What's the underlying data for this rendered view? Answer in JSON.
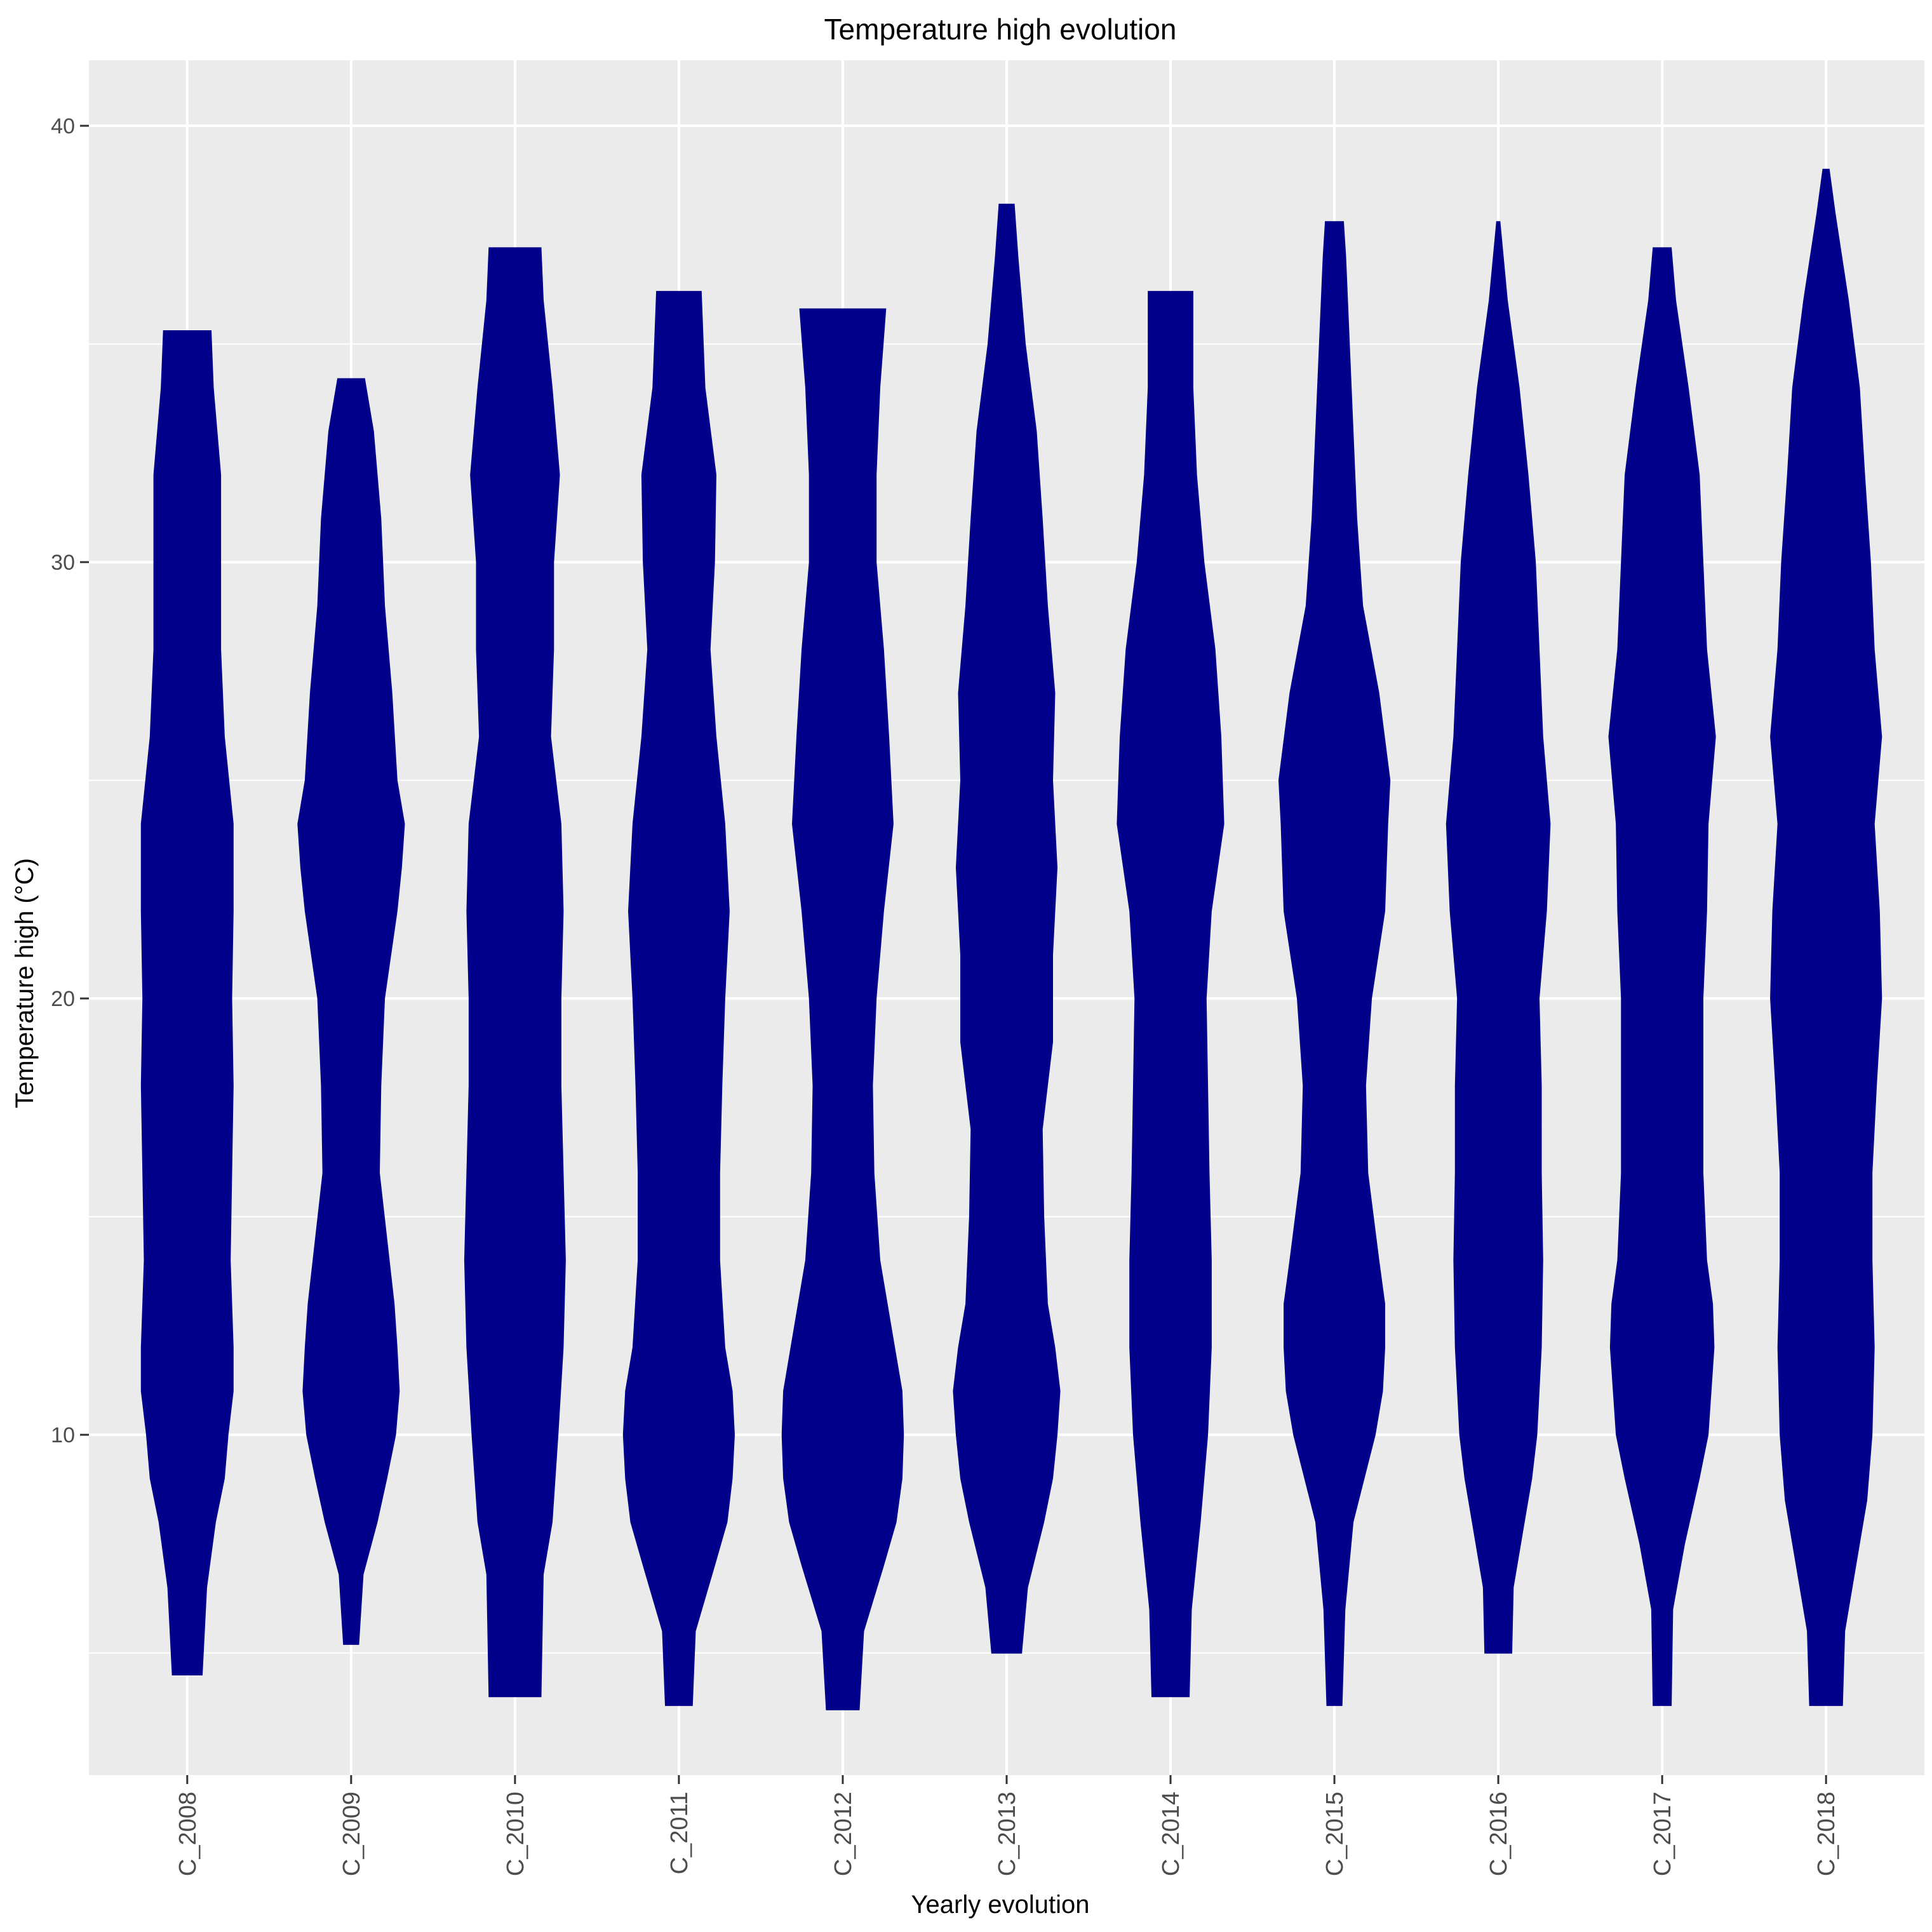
{
  "chart_data": {
    "type": "violin",
    "title": "Temperature high evolution",
    "xlabel": "Yearly evolution",
    "ylabel": "Temperature high (°C)",
    "ylim": [
      2.2,
      41.5
    ],
    "y_ticks": [
      10,
      20,
      30,
      40
    ],
    "grid": true,
    "fill_color": "#00008B",
    "panel_color": "#EBEBEB",
    "grid_color": "#FFFFFF",
    "categories": [
      "C_2008",
      "C_2009",
      "C_2010",
      "C_2011",
      "C_2012",
      "C_2013",
      "C_2014",
      "C_2015",
      "C_2016",
      "C_2017",
      "C_2018"
    ],
    "series": [
      {
        "category": "C_2008",
        "min": 4.5,
        "max": 35.3,
        "density": [
          [
            4.5,
            0.2
          ],
          [
            6.5,
            0.26
          ],
          [
            8,
            0.38
          ],
          [
            9,
            0.5
          ],
          [
            10,
            0.55
          ],
          [
            11,
            0.62
          ],
          [
            12,
            0.62
          ],
          [
            14,
            0.58
          ],
          [
            16,
            0.6
          ],
          [
            18,
            0.62
          ],
          [
            20,
            0.6
          ],
          [
            22,
            0.62
          ],
          [
            24,
            0.62
          ],
          [
            26,
            0.5
          ],
          [
            28,
            0.45
          ],
          [
            30,
            0.45
          ],
          [
            32,
            0.45
          ],
          [
            34,
            0.35
          ],
          [
            35.3,
            0.32
          ]
        ]
      },
      {
        "category": "C_2009",
        "min": 5.2,
        "max": 34.2,
        "density": [
          [
            5.2,
            0.1
          ],
          [
            6.8,
            0.16
          ],
          [
            8,
            0.35
          ],
          [
            9,
            0.48
          ],
          [
            10,
            0.6
          ],
          [
            11,
            0.65
          ],
          [
            12,
            0.62
          ],
          [
            13,
            0.58
          ],
          [
            14.5,
            0.48
          ],
          [
            16,
            0.38
          ],
          [
            18,
            0.4
          ],
          [
            20,
            0.45
          ],
          [
            22,
            0.62
          ],
          [
            23,
            0.68
          ],
          [
            24,
            0.72
          ],
          [
            25,
            0.62
          ],
          [
            27,
            0.55
          ],
          [
            29,
            0.45
          ],
          [
            31,
            0.4
          ],
          [
            33,
            0.3
          ],
          [
            34.2,
            0.18
          ]
        ]
      },
      {
        "category": "C_2010",
        "min": 4.0,
        "max": 37.2,
        "density": [
          [
            4.0,
            0.35
          ],
          [
            6.8,
            0.38
          ],
          [
            8,
            0.5
          ],
          [
            10,
            0.58
          ],
          [
            12,
            0.65
          ],
          [
            14,
            0.68
          ],
          [
            16,
            0.65
          ],
          [
            18,
            0.62
          ],
          [
            20,
            0.62
          ],
          [
            22,
            0.65
          ],
          [
            24,
            0.62
          ],
          [
            26,
            0.48
          ],
          [
            28,
            0.52
          ],
          [
            30,
            0.52
          ],
          [
            32,
            0.6
          ],
          [
            34,
            0.5
          ],
          [
            36,
            0.38
          ],
          [
            37.2,
            0.35
          ]
        ]
      },
      {
        "category": "C_2011",
        "min": 3.8,
        "max": 36.2,
        "density": [
          [
            3.8,
            0.18
          ],
          [
            5.5,
            0.22
          ],
          [
            7,
            0.48
          ],
          [
            8,
            0.65
          ],
          [
            9,
            0.72
          ],
          [
            10,
            0.75
          ],
          [
            11,
            0.72
          ],
          [
            12,
            0.62
          ],
          [
            14,
            0.55
          ],
          [
            16,
            0.55
          ],
          [
            18,
            0.58
          ],
          [
            20,
            0.62
          ],
          [
            22,
            0.68
          ],
          [
            24,
            0.62
          ],
          [
            26,
            0.5
          ],
          [
            28,
            0.42
          ],
          [
            30,
            0.48
          ],
          [
            32,
            0.5
          ],
          [
            34,
            0.35
          ],
          [
            36.2,
            0.3
          ]
        ]
      },
      {
        "category": "C_2012",
        "min": 3.7,
        "max": 35.8,
        "density": [
          [
            3.7,
            0.22
          ],
          [
            5.5,
            0.28
          ],
          [
            7,
            0.55
          ],
          [
            8,
            0.72
          ],
          [
            9,
            0.8
          ],
          [
            10,
            0.82
          ],
          [
            11,
            0.8
          ],
          [
            12,
            0.7
          ],
          [
            14,
            0.5
          ],
          [
            16,
            0.42
          ],
          [
            18,
            0.4
          ],
          [
            20,
            0.45
          ],
          [
            22,
            0.55
          ],
          [
            24,
            0.68
          ],
          [
            26,
            0.62
          ],
          [
            28,
            0.55
          ],
          [
            30,
            0.45
          ],
          [
            32,
            0.45
          ],
          [
            34,
            0.5
          ],
          [
            35.8,
            0.58
          ]
        ]
      },
      {
        "category": "C_2013",
        "min": 5.0,
        "max": 38.2,
        "density": [
          [
            5.0,
            0.2
          ],
          [
            6.5,
            0.28
          ],
          [
            8,
            0.5
          ],
          [
            9,
            0.62
          ],
          [
            10,
            0.68
          ],
          [
            11,
            0.72
          ],
          [
            12,
            0.65
          ],
          [
            13,
            0.55
          ],
          [
            15,
            0.5
          ],
          [
            17,
            0.48
          ],
          [
            19,
            0.62
          ],
          [
            21,
            0.62
          ],
          [
            23,
            0.68
          ],
          [
            25,
            0.62
          ],
          [
            27,
            0.65
          ],
          [
            29,
            0.55
          ],
          [
            31,
            0.48
          ],
          [
            33,
            0.4
          ],
          [
            35,
            0.25
          ],
          [
            37,
            0.15
          ],
          [
            38.2,
            0.1
          ]
        ]
      },
      {
        "category": "C_2014",
        "min": 4.0,
        "max": 36.2,
        "density": [
          [
            4.0,
            0.25
          ],
          [
            6,
            0.28
          ],
          [
            8,
            0.4
          ],
          [
            10,
            0.5
          ],
          [
            12,
            0.55
          ],
          [
            14,
            0.55
          ],
          [
            16,
            0.52
          ],
          [
            18,
            0.5
          ],
          [
            20,
            0.48
          ],
          [
            22,
            0.55
          ],
          [
            24,
            0.72
          ],
          [
            26,
            0.68
          ],
          [
            28,
            0.6
          ],
          [
            30,
            0.45
          ],
          [
            32,
            0.35
          ],
          [
            34,
            0.3
          ],
          [
            36.2,
            0.3
          ]
        ]
      },
      {
        "category": "C_2015",
        "min": 3.8,
        "max": 37.8,
        "density": [
          [
            3.8,
            0.1
          ],
          [
            6,
            0.14
          ],
          [
            8,
            0.25
          ],
          [
            9,
            0.4
          ],
          [
            10,
            0.55
          ],
          [
            11,
            0.65
          ],
          [
            12,
            0.68
          ],
          [
            13,
            0.68
          ],
          [
            14,
            0.6
          ],
          [
            16,
            0.45
          ],
          [
            18,
            0.42
          ],
          [
            20,
            0.5
          ],
          [
            22,
            0.68
          ],
          [
            24,
            0.72
          ],
          [
            25,
            0.75
          ],
          [
            27,
            0.6
          ],
          [
            29,
            0.38
          ],
          [
            31,
            0.3
          ],
          [
            33,
            0.25
          ],
          [
            35,
            0.2
          ],
          [
            37,
            0.15
          ],
          [
            37.8,
            0.12
          ]
        ]
      },
      {
        "category": "C_2016",
        "min": 5.0,
        "max": 37.8,
        "density": [
          [
            5.0,
            0.18
          ],
          [
            6.5,
            0.2
          ],
          [
            8,
            0.35
          ],
          [
            9,
            0.45
          ],
          [
            10,
            0.52
          ],
          [
            12,
            0.58
          ],
          [
            14,
            0.6
          ],
          [
            16,
            0.58
          ],
          [
            18,
            0.58
          ],
          [
            20,
            0.55
          ],
          [
            22,
            0.65
          ],
          [
            24,
            0.7
          ],
          [
            26,
            0.6
          ],
          [
            28,
            0.55
          ],
          [
            30,
            0.5
          ],
          [
            32,
            0.4
          ],
          [
            34,
            0.28
          ],
          [
            36,
            0.12
          ],
          [
            37.8,
            0.02
          ]
        ]
      },
      {
        "category": "C_2017",
        "min": 3.8,
        "max": 37.2,
        "density": [
          [
            3.8,
            0.12
          ],
          [
            6,
            0.14
          ],
          [
            7.5,
            0.3
          ],
          [
            9,
            0.5
          ],
          [
            10,
            0.62
          ],
          [
            12,
            0.7
          ],
          [
            13,
            0.68
          ],
          [
            14,
            0.6
          ],
          [
            16,
            0.55
          ],
          [
            18,
            0.55
          ],
          [
            20,
            0.55
          ],
          [
            22,
            0.6
          ],
          [
            24,
            0.62
          ],
          [
            26,
            0.72
          ],
          [
            28,
            0.6
          ],
          [
            30,
            0.55
          ],
          [
            32,
            0.5
          ],
          [
            34,
            0.35
          ],
          [
            36,
            0.18
          ],
          [
            37.2,
            0.12
          ]
        ]
      },
      {
        "category": "C_2018",
        "min": 3.8,
        "max": 39.0,
        "density": [
          [
            3.8,
            0.22
          ],
          [
            5.5,
            0.25
          ],
          [
            7,
            0.4
          ],
          [
            8.5,
            0.55
          ],
          [
            10,
            0.62
          ],
          [
            12,
            0.65
          ],
          [
            14,
            0.62
          ],
          [
            16,
            0.62
          ],
          [
            18,
            0.68
          ],
          [
            20,
            0.75
          ],
          [
            22,
            0.72
          ],
          [
            24,
            0.65
          ],
          [
            26,
            0.75
          ],
          [
            28,
            0.65
          ],
          [
            30,
            0.6
          ],
          [
            32,
            0.52
          ],
          [
            34,
            0.45
          ],
          [
            36,
            0.3
          ],
          [
            38,
            0.12
          ],
          [
            39.0,
            0.04
          ]
        ]
      }
    ]
  }
}
